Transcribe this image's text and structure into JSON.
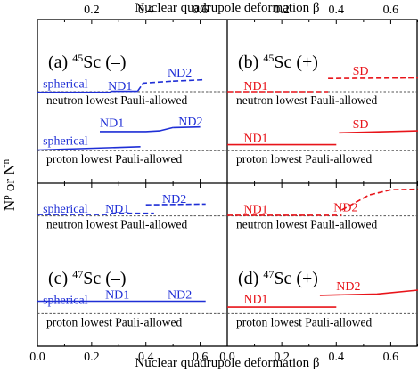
{
  "chart_data": {
    "type": "line",
    "xlabel": "Nuclear quadrupole deformation β",
    "ylabel": "N",
    "ylabel_sup": "p",
    "ylabel_mid": " or N",
    "ylabel_sup2": "n",
    "xlim": [
      0.0,
      0.7
    ],
    "x_ticks": [
      "0.0",
      "0.2",
      "0.4",
      "0.6"
    ],
    "x_ticks_top": [
      "0.2",
      "0.4",
      "0.6"
    ],
    "y_range_top": [
      28,
      53
    ],
    "y_range_bottom": [
      28,
      53
    ],
    "y_ticks": [
      "30",
      "40",
      "50"
    ],
    "colors": {
      "blue": "#1f2fd6",
      "red": "#e8141a",
      "pauli_line": "#555555"
    },
    "panels": [
      {
        "id": "a",
        "label_prefix": "(a) ",
        "mass": "45",
        "label_suffix": "Sc (–)",
        "color": "#1f2fd6",
        "pauli": [
          {
            "text": "neutron lowest Pauli-allowed",
            "y": 42
          },
          {
            "text": "proton lowest Pauli-allowed",
            "y": 33
          }
        ],
        "series": [
          {
            "name": "spherical",
            "dash": false,
            "points": [
              [
                0.0,
                41.9
              ],
              [
                0.27,
                41.9
              ]
            ]
          },
          {
            "name": "ND1",
            "dash": false,
            "points": [
              [
                0.27,
                42.05
              ],
              [
                0.37,
                42.05
              ]
            ]
          },
          {
            "name": "",
            "dash": true,
            "points": [
              [
                0.37,
                42.1
              ],
              [
                0.39,
                43.3
              ],
              [
                0.5,
                43.6
              ]
            ]
          },
          {
            "name": "ND2",
            "dash": true,
            "points": [
              [
                0.5,
                43.6
              ],
              [
                0.61,
                43.8
              ]
            ]
          },
          {
            "name": "spherical",
            "dash": false,
            "points": [
              [
                0.0,
                33.1
              ],
              [
                0.38,
                33.6
              ]
            ]
          },
          {
            "name": "ND1",
            "dash": false,
            "points": [
              [
                0.23,
                35.9
              ],
              [
                0.4,
                35.9
              ],
              [
                0.45,
                36.0
              ],
              [
                0.5,
                36.5
              ]
            ]
          },
          {
            "name": "ND2",
            "dash": false,
            "points": [
              [
                0.5,
                36.5
              ],
              [
                0.6,
                36.6
              ]
            ]
          }
        ],
        "annotations": [
          {
            "text": "spherical",
            "x": 0.02,
            "y": 42.6
          },
          {
            "text": "ND1",
            "x": 0.26,
            "y": 42.3
          },
          {
            "text": "ND2",
            "x": 0.48,
            "y": 44.3
          },
          {
            "text": "spherical",
            "x": 0.02,
            "y": 33.9
          },
          {
            "text": "ND1",
            "x": 0.23,
            "y": 36.6
          },
          {
            "text": "ND2",
            "x": 0.52,
            "y": 36.8
          }
        ]
      },
      {
        "id": "b",
        "label_prefix": "(b) ",
        "mass": "45",
        "label_suffix": "Sc (+)",
        "color": "#e8141a",
        "pauli": [
          {
            "text": "neutron lowest Pauli-allowed",
            "y": 42
          },
          {
            "text": "proton lowest Pauli-allowed",
            "y": 33
          }
        ],
        "series": [
          {
            "name": "ND1",
            "dash": true,
            "points": [
              [
                0.0,
                42.0
              ],
              [
                0.37,
                42.0
              ]
            ]
          },
          {
            "name": "SD",
            "dash": true,
            "points": [
              [
                0.37,
                44.0
              ],
              [
                0.7,
                44.1
              ]
            ]
          },
          {
            "name": "ND1",
            "dash": false,
            "points": [
              [
                0.0,
                33.9
              ],
              [
                0.4,
                33.9
              ]
            ]
          },
          {
            "name": "",
            "dash": false,
            "points": [
              [
                0.41,
                35.7
              ],
              [
                0.7,
                36.0
              ]
            ]
          }
        ],
        "annotations": [
          {
            "text": "ND1",
            "x": 0.06,
            "y": 42.3
          },
          {
            "text": "SD",
            "x": 0.46,
            "y": 44.6
          },
          {
            "text": "ND1",
            "x": 0.06,
            "y": 34.3
          },
          {
            "text": "SD",
            "x": 0.46,
            "y": 36.4
          }
        ]
      },
      {
        "id": "c",
        "label_prefix": "(c) ",
        "mass": "47",
        "label_suffix": "Sc (–)",
        "color": "#1f2fd6",
        "pauli": [
          {
            "text": "neutron lowest Pauli-allowed",
            "y": 48
          },
          {
            "text": "proton lowest Pauli-allowed",
            "y": 33
          }
        ],
        "series": [
          {
            "name": "spherical",
            "dash": true,
            "points": [
              [
                0.0,
                48.2
              ],
              [
                0.27,
                48.2
              ]
            ]
          },
          {
            "name": "ND1",
            "dash": true,
            "points": [
              [
                0.27,
                48.4
              ],
              [
                0.43,
                48.4
              ]
            ]
          },
          {
            "name": "ND2",
            "dash": true,
            "points": [
              [
                0.4,
                49.7
              ],
              [
                0.62,
                49.8
              ]
            ]
          },
          {
            "name": "spherical",
            "dash": false,
            "points": [
              [
                0.0,
                34.9
              ],
              [
                0.62,
                34.9
              ]
            ]
          }
        ],
        "annotations": [
          {
            "text": "spherical",
            "x": 0.02,
            "y": 48.5
          },
          {
            "text": "ND1",
            "x": 0.25,
            "y": 48.5
          },
          {
            "text": "ND2",
            "x": 0.46,
            "y": 50.0
          },
          {
            "text": "spherical",
            "x": 0.02,
            "y": 34.5
          },
          {
            "text": "ND1",
            "x": 0.25,
            "y": 35.3
          },
          {
            "text": "ND2",
            "x": 0.48,
            "y": 35.3
          }
        ]
      },
      {
        "id": "d",
        "label_prefix": "(d) ",
        "mass": "47",
        "label_suffix": "Sc (+)",
        "color": "#e8141a",
        "pauli": [
          {
            "text": "neutron lowest Pauli-allowed",
            "y": 48
          },
          {
            "text": "proton lowest Pauli-allowed",
            "y": 33
          }
        ],
        "series": [
          {
            "name": "ND1",
            "dash": true,
            "points": [
              [
                0.0,
                48.1
              ],
              [
                0.42,
                48.1
              ]
            ]
          },
          {
            "name": "ND2",
            "dash": true,
            "points": [
              [
                0.42,
                48.9
              ],
              [
                0.52,
                51.2
              ],
              [
                0.6,
                52.0
              ],
              [
                0.7,
                52.1
              ]
            ]
          },
          {
            "name": "ND1",
            "dash": false,
            "points": [
              [
                0.0,
                34.0
              ],
              [
                0.4,
                34.0
              ]
            ]
          },
          {
            "name": "ND2",
            "dash": false,
            "points": [
              [
                0.34,
                35.8
              ],
              [
                0.55,
                36.0
              ],
              [
                0.7,
                36.6
              ]
            ]
          }
        ],
        "annotations": [
          {
            "text": "ND1",
            "x": 0.06,
            "y": 48.4
          },
          {
            "text": "ND2",
            "x": 0.39,
            "y": 48.7
          },
          {
            "text": "ND1",
            "x": 0.06,
            "y": 34.6
          },
          {
            "text": "ND2",
            "x": 0.4,
            "y": 36.6
          }
        ]
      }
    ]
  }
}
